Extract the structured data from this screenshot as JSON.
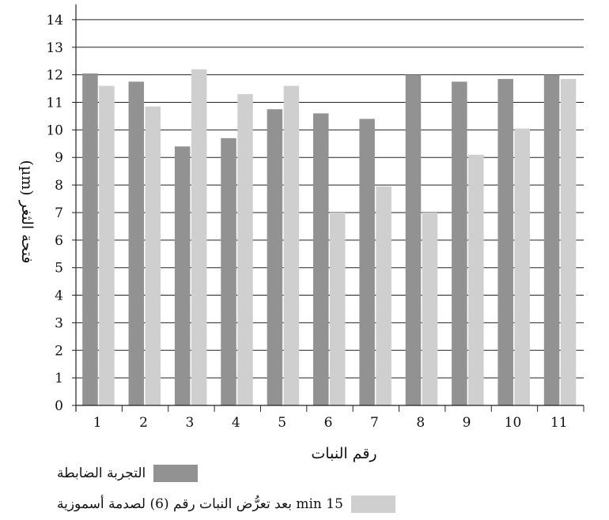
{
  "chart_data": {
    "type": "bar",
    "categories": [
      "1",
      "2",
      "3",
      "4",
      "5",
      "6",
      "7",
      "8",
      "9",
      "10",
      "11"
    ],
    "series": [
      {
        "name": "التجربة الضابطة",
        "values": [
          12.05,
          11.75,
          9.4,
          9.7,
          10.75,
          10.6,
          10.4,
          12.0,
          11.75,
          11.85,
          12.0
        ],
        "color": "#929292"
      },
      {
        "name": "15 min بعد تعرُّض النبات رقم (6) لصدمة أسموزية",
        "values": [
          11.6,
          10.85,
          12.2,
          11.3,
          11.6,
          7.0,
          7.95,
          7.0,
          9.1,
          10.05,
          11.85
        ],
        "color": "#cfcfcf"
      }
    ],
    "yticks": [
      "0",
      "1",
      "2",
      "3",
      "4",
      "5",
      "6",
      "7",
      "8",
      "9",
      "10",
      "11",
      "12",
      "13",
      "14"
    ],
    "xlabel": "رقم النبات",
    "ylabel": "فتحة الثغر (µm)",
    "ylim": [
      0,
      14.5
    ],
    "grid": true
  }
}
